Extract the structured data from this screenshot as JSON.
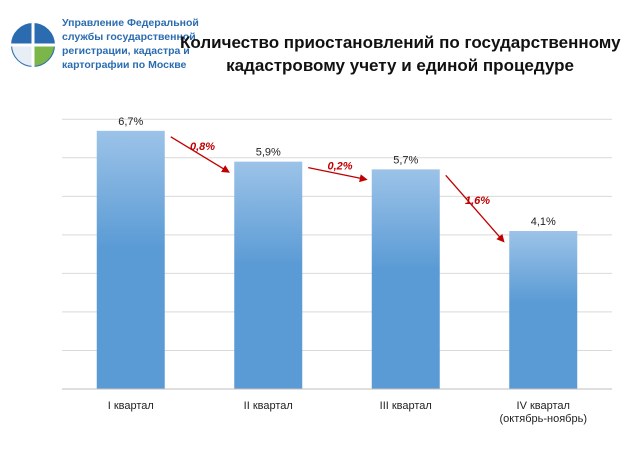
{
  "header": {
    "org_lines": [
      "Управление Федеральной",
      "службы государственной",
      "регистрации, кадастра и",
      "картографии по Москве"
    ]
  },
  "chart_data": {
    "type": "bar",
    "title_lines": [
      "Количество приостановлений по государственному",
      "кадастровому учету и единой процедуре"
    ],
    "categories": [
      [
        "I квартал"
      ],
      [
        "II квартал"
      ],
      [
        "III квартал"
      ],
      [
        "IV квартал",
        "(октябрь-ноябрь)"
      ]
    ],
    "values": [
      6.7,
      5.9,
      5.7,
      4.1
    ],
    "value_labels": [
      "6,7%",
      "5,9%",
      "5,7%",
      "4,1%"
    ],
    "changes": [
      "0,8%",
      "0,2%",
      "1,6%"
    ],
    "ylim": [
      0,
      7.5
    ],
    "grid": true,
    "colors": {
      "bar": "#5b9bd5",
      "bar_light": "#9cc3e8",
      "arrow": "#c00000",
      "grid": "#d9d9d9",
      "logo_blue": "#2b6cb0",
      "logo_green": "#7ab648"
    }
  }
}
